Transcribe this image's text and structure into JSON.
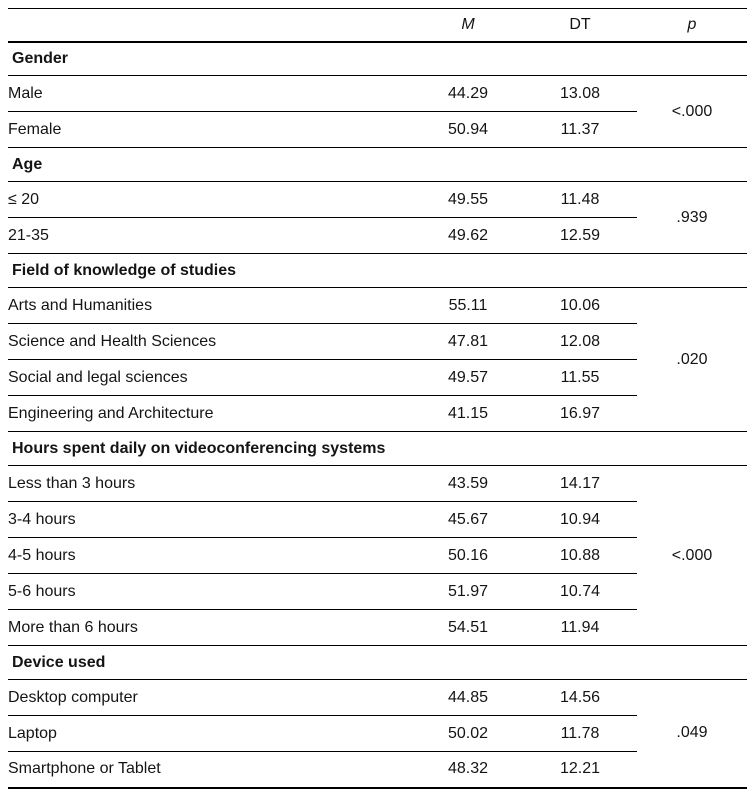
{
  "table": {
    "columns": {
      "m": "M",
      "dt": "DT",
      "p": "p"
    },
    "sections": [
      {
        "title": "Gender",
        "p": "<.000",
        "rows": [
          {
            "label": "Male",
            "m": "44.29",
            "dt": "13.08"
          },
          {
            "label": "Female",
            "m": "50.94",
            "dt": "11.37"
          }
        ]
      },
      {
        "title": "Age",
        "p": ".939",
        "rows": [
          {
            "label": "≤ 20",
            "m": "49.55",
            "dt": "11.48"
          },
          {
            "label": "21-35",
            "m": "49.62",
            "dt": "12.59"
          }
        ]
      },
      {
        "title": "Field of knowledge of studies",
        "p": ".020",
        "rows": [
          {
            "label": "Arts and Humanities",
            "m": "55.11",
            "dt": "10.06"
          },
          {
            "label": "Science and Health Sciences",
            "m": "47.81",
            "dt": "12.08"
          },
          {
            "label": "Social and legal sciences",
            "m": "49.57",
            "dt": "11.55"
          },
          {
            "label": "Engineering and Architecture",
            "m": "41.15",
            "dt": "16.97"
          }
        ]
      },
      {
        "title": "Hours spent daily on videoconferencing systems",
        "p": "<.000",
        "rows": [
          {
            "label": "Less than 3 hours",
            "m": "43.59",
            "dt": "14.17"
          },
          {
            "label": "3-4 hours",
            "m": "45.67",
            "dt": "10.94"
          },
          {
            "label": "4-5 hours",
            "m": "50.16",
            "dt": "10.88"
          },
          {
            "label": "5-6 hours",
            "m": "51.97",
            "dt": "10.74"
          },
          {
            "label": "More than 6 hours",
            "m": "54.51",
            "dt": "11.94"
          }
        ]
      },
      {
        "title": "Device used",
        "p": ".049",
        "rows": [
          {
            "label": "Desktop computer",
            "m": "44.85",
            "dt": "14.56"
          },
          {
            "label": "Laptop",
            "m": "50.02",
            "dt": "11.78"
          },
          {
            "label": "Smartphone or Tablet",
            "m": "48.32",
            "dt": "12.21"
          }
        ]
      }
    ]
  }
}
